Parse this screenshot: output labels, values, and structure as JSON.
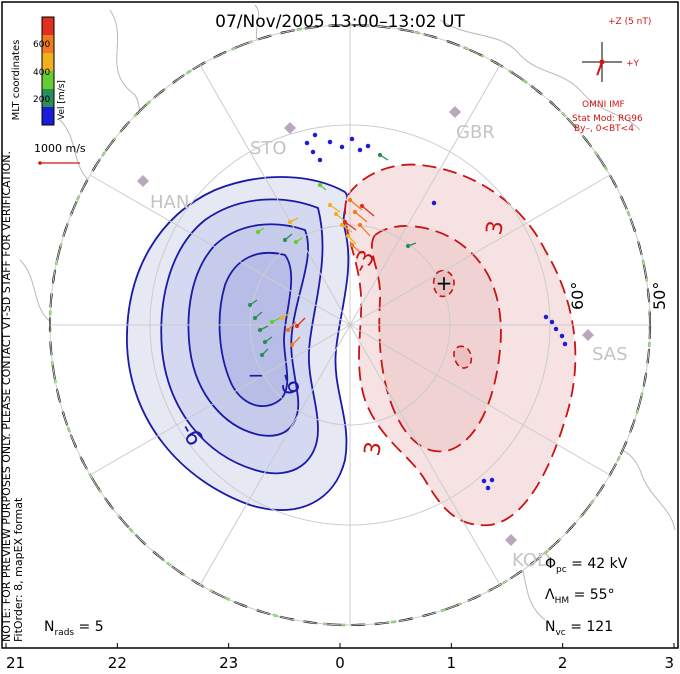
{
  "chart_data": {
    "type": "contour",
    "title": "07/Nov/2005 13:00–13:02 UT",
    "coordinates": "MLT coordinates",
    "colorbar": {
      "label": "Vel [m/s]",
      "ticks": [
        "200",
        "400",
        "600"
      ],
      "colors": [
        "#1c1cd8",
        "#2a8f5a",
        "#66cc33",
        "#f0b020",
        "#f07a20",
        "#e03020"
      ]
    },
    "vector_scale_label": "1000 m/s",
    "imf": {
      "z_label": "+Z (5 nT)",
      "y_label": "+Y",
      "source_label": "OMNI IMF",
      "model_label": "Stat Mod: RG96",
      "condition_label": "By–, 0<BT<4",
      "direction_deg": 200
    },
    "stations": [
      "STO",
      "GBR",
      "HAN",
      "SAS",
      "KOD"
    ],
    "latitude_labels": [
      "60°",
      "50°"
    ],
    "mlt_ticks": [
      "21",
      "22",
      "23",
      "0",
      "1",
      "2",
      "3"
    ],
    "contour_labels": [
      "-9",
      "-6",
      "-3",
      "3"
    ],
    "potential_extrema": [
      "−",
      "+"
    ],
    "stats": {
      "phi_pc_label": "Φ",
      "phi_pc_sub": "pc",
      "phi_pc_value": " = 42 kV",
      "lambda_hm_label": "Λ",
      "lambda_hm_sub": "HM",
      "lambda_hm_value": " = 55°",
      "n_vc_label": "N",
      "n_vc_sub": "vc",
      "n_vc_value": " = 121",
      "n_rads_label": "N",
      "n_rads_sub": "rads",
      "n_rads_value": " = 5"
    },
    "notes": [
      "NOTE: FOR PREVIEW PURPOSES ONLY. PLEASE CONTACT VT-SD STAFF FOR VERIFICATION.",
      "FitOrder: 8, mapEX format"
    ]
  }
}
